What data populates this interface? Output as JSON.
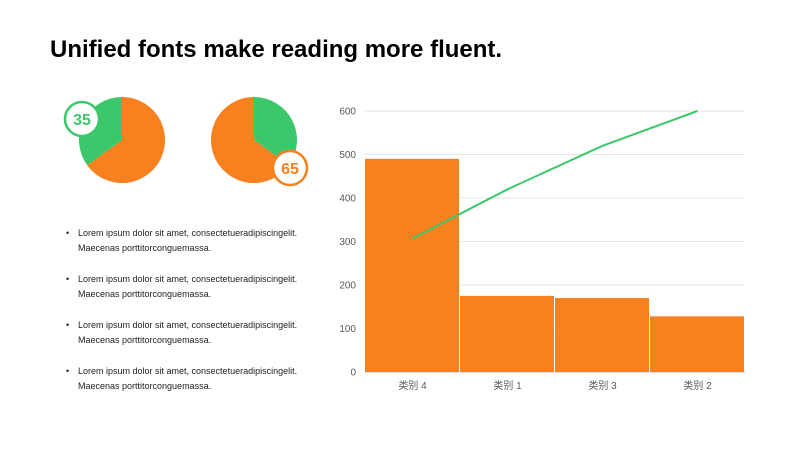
{
  "title": "Unified fonts make reading more fluent.",
  "colors": {
    "accent_orange": "#f7801f",
    "accent_green": "#3cc86a",
    "grid": "#e6e6e6",
    "axis_text": "#595959"
  },
  "pies": [
    {
      "value": 35,
      "label": "35",
      "highlight_color": "#3cc86a",
      "rest_color": "#f7801f",
      "badge_position": "top-left"
    },
    {
      "value": 65,
      "label": "65",
      "highlight_color": "#f7801f",
      "rest_color": "#3cc86a",
      "badge_position": "bottom-right"
    }
  ],
  "bullets": [
    {
      "line1": "Lorem ipsum dolor sit amet, consectetueradipiscingelit.",
      "line2": "Maecenas porttitorconguemassa."
    },
    {
      "line1": "Lorem ipsum dolor sit amet, consectetueradipiscingelit.",
      "line2": "Maecenas porttitorconguemassa."
    },
    {
      "line1": "Lorem ipsum dolor sit amet, consectetueradipiscingelit.",
      "line2": "Maecenas porttitorconguemassa."
    },
    {
      "line1": "Lorem ipsum dolor sit amet, consectetueradipiscingelit.",
      "line2": "Maecenas porttitorconguemassa."
    }
  ],
  "chart_data": [
    {
      "type": "pie",
      "values": [
        35,
        65
      ],
      "labels": [
        "35",
        ""
      ],
      "colors": [
        "#3cc86a",
        "#f7801f"
      ]
    },
    {
      "type": "pie",
      "values": [
        65,
        35
      ],
      "labels": [
        "65",
        ""
      ],
      "colors": [
        "#f7801f",
        "#3cc86a"
      ]
    },
    {
      "type": "bar",
      "categories": [
        "类别 4",
        "类别 1",
        "类别 3",
        "类别 2"
      ],
      "series": [
        {
          "type": "bar",
          "values": [
            490,
            175,
            170,
            128
          ],
          "color": "#f7801f"
        },
        {
          "type": "line",
          "values": [
            307,
            420,
            520,
            600
          ],
          "color": "#3cc86a"
        }
      ],
      "ylim": [
        0,
        600
      ],
      "yticks": [
        0,
        100,
        200,
        300,
        400,
        500,
        600
      ],
      "grid": true,
      "title": "",
      "xlabel": "",
      "ylabel": ""
    }
  ]
}
